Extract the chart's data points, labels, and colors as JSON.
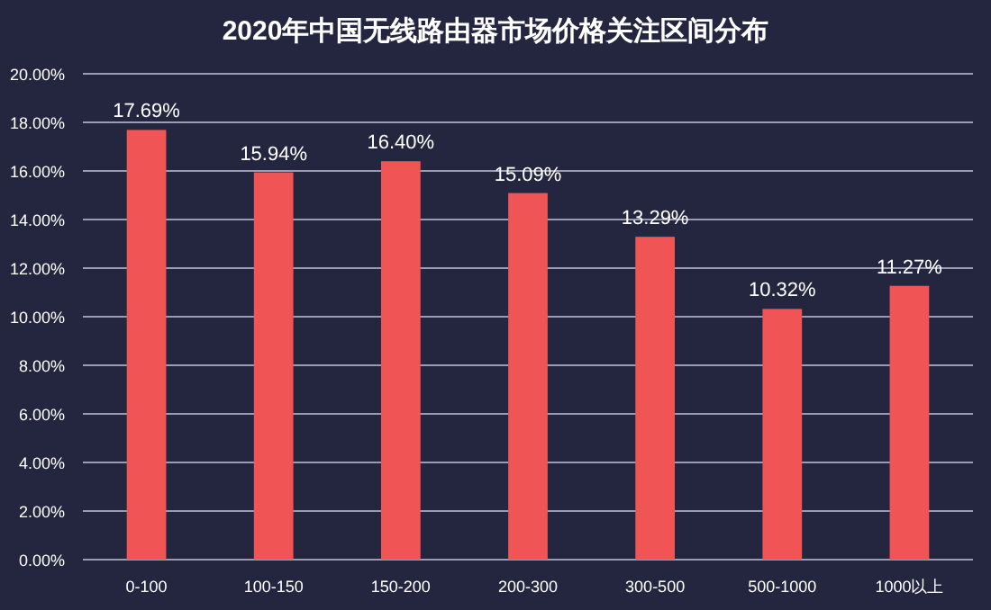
{
  "chart_data": {
    "type": "bar",
    "title": "2020年中国无线路由器市场价格关注区间分布",
    "categories": [
      "0-100",
      "100-150",
      "150-200",
      "200-300",
      "300-500",
      "500-1000",
      "1000以上"
    ],
    "values": [
      17.69,
      15.94,
      16.4,
      15.09,
      13.29,
      10.32,
      11.27
    ],
    "value_labels": [
      "17.69%",
      "15.94%",
      "16.40%",
      "15.09%",
      "13.29%",
      "10.32%",
      "11.27%"
    ],
    "color": "#f05454",
    "ylim": [
      0,
      20
    ],
    "yticks": [
      {
        "value": 0,
        "label": "0.00%"
      },
      {
        "value": 2,
        "label": "2.00%"
      },
      {
        "value": 4,
        "label": "4.00%"
      },
      {
        "value": 6,
        "label": "6.00%"
      },
      {
        "value": 8,
        "label": "8.00%"
      },
      {
        "value": 10,
        "label": "10.00%"
      },
      {
        "value": 12,
        "label": "12.00%"
      },
      {
        "value": 14,
        "label": "14.00%"
      },
      {
        "value": 16,
        "label": "16.00%"
      },
      {
        "value": 18,
        "label": "18.00%"
      },
      {
        "value": 20,
        "label": "20.00%"
      }
    ],
    "grid": "y"
  }
}
